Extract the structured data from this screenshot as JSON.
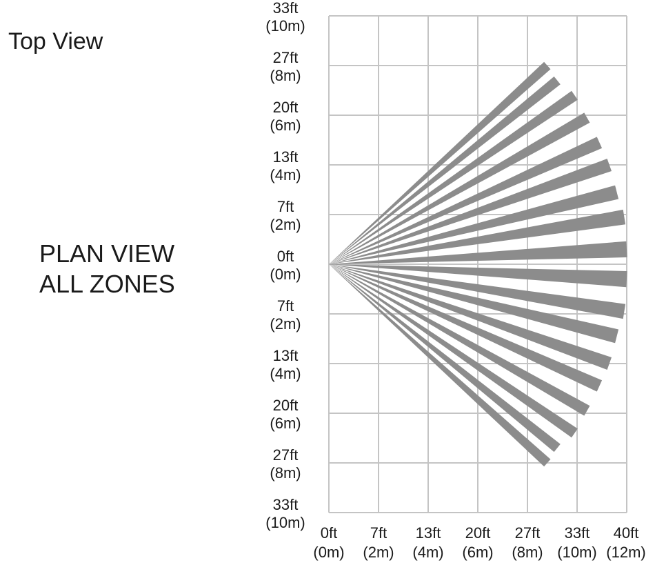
{
  "header": {
    "title": "Top View",
    "caption_line1": "PLAN  VIEW",
    "caption_line2": "ALL  ZONES"
  },
  "colors": {
    "grid": "#c4c4c4",
    "beam": "#8c8c8c",
    "text": "#1a1a1a"
  },
  "diagram": {
    "y_axis_labels": [
      {
        "ft": "33ft",
        "m": "(10m)"
      },
      {
        "ft": "27ft",
        "m": "(8m)"
      },
      {
        "ft": "20ft",
        "m": "(6m)"
      },
      {
        "ft": "13ft",
        "m": "(4m)"
      },
      {
        "ft": "7ft",
        "m": "(2m)"
      },
      {
        "ft": "0ft",
        "m": "(0m)"
      },
      {
        "ft": "7ft",
        "m": "(2m)"
      },
      {
        "ft": "13ft",
        "m": "(4m)"
      },
      {
        "ft": "20ft",
        "m": "(6m)"
      },
      {
        "ft": "27ft",
        "m": "(8m)"
      },
      {
        "ft": "33ft",
        "m": "(10m)"
      }
    ],
    "x_axis_labels": [
      {
        "ft": "0ft",
        "m": "(0m)"
      },
      {
        "ft": "7ft",
        "m": "(2m)"
      },
      {
        "ft": "13ft",
        "m": "(4m)"
      },
      {
        "ft": "20ft",
        "m": "(6m)"
      },
      {
        "ft": "27ft",
        "m": "(8m)"
      },
      {
        "ft": "33ft",
        "m": "(10m)"
      },
      {
        "ft": "40ft",
        "m": "(12m)"
      }
    ],
    "beams_m": [
      {
        "x": 8.8,
        "y": 8.0
      },
      {
        "x": 9.2,
        "y": 7.4
      },
      {
        "x": 9.9,
        "y": 6.8
      },
      {
        "x": 10.4,
        "y": 5.9
      },
      {
        "x": 10.9,
        "y": 4.9
      },
      {
        "x": 11.3,
        "y": 4.0
      },
      {
        "x": 11.6,
        "y": 2.9
      },
      {
        "x": 11.9,
        "y": 1.9
      },
      {
        "x": 12.0,
        "y": 0.6
      },
      {
        "x": 12.0,
        "y": -0.6
      },
      {
        "x": 11.9,
        "y": -1.9
      },
      {
        "x": 11.6,
        "y": -2.9
      },
      {
        "x": 11.3,
        "y": -4.0
      },
      {
        "x": 10.9,
        "y": -4.9
      },
      {
        "x": 10.4,
        "y": -5.9
      },
      {
        "x": 9.9,
        "y": -6.8
      },
      {
        "x": 9.2,
        "y": -7.4
      },
      {
        "x": 8.8,
        "y": -8.0
      }
    ]
  }
}
